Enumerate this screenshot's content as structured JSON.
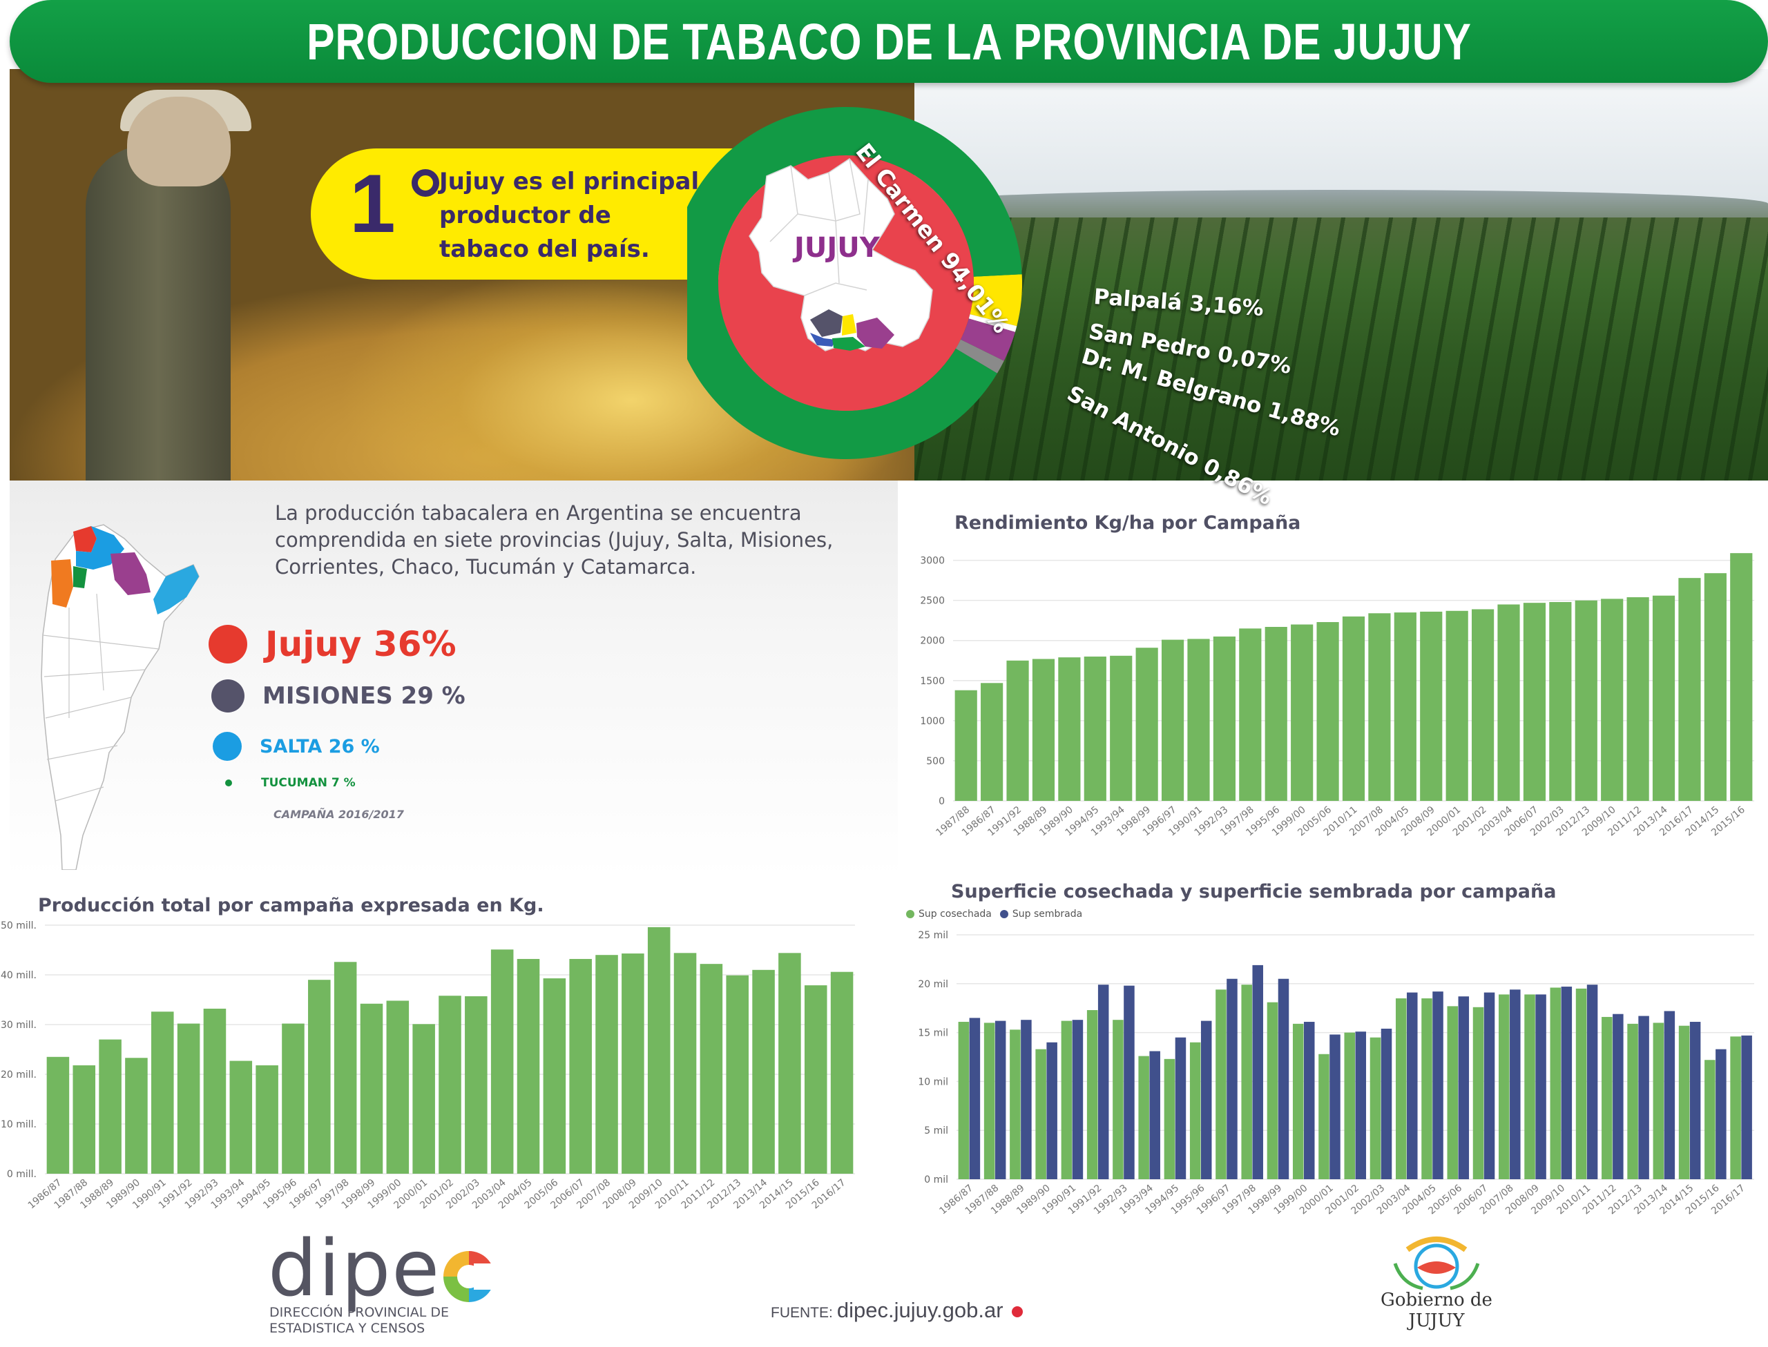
{
  "header": {
    "title": "PRODUCCION DE TABACO DE LA PROVINCIA DE JUJUY"
  },
  "hero": {
    "rank": "1",
    "callout_lines": [
      "Jujuy es el principal",
      "productor de",
      "tabaco del país."
    ],
    "map_label": "JUJUY",
    "donut": [
      {
        "name": "El Carmen",
        "label": "El Carmen 94,01%",
        "value": 94.01,
        "color": "#129a45"
      },
      {
        "name": "Palpalá",
        "label": "Palpalá 3,16%",
        "value": 3.16,
        "color": "#ffe600"
      },
      {
        "name": "San Pedro",
        "label": "San Pedro  0,07%",
        "value": 0.07,
        "color": "#ffffff"
      },
      {
        "name": "Dr. M. Belgrano",
        "label": "Dr. M. Belgrano 1,88%",
        "value": 1.88,
        "color": "#9a3f8e"
      },
      {
        "name": "San Antonio",
        "label": "San Antonio 0,86%",
        "value": 0.86,
        "color": "#8a8a8a"
      }
    ],
    "donut_inner_color": "#e9434d"
  },
  "intro": {
    "text": "La producción tabacalera en Argentina se encuentra comprendida en siete provincias (Jujuy, Salta, Misiones, Corrientes, Chaco, Tucumán y Catamarca."
  },
  "shares": [
    {
      "label": "Jujuy 36%",
      "value": 36,
      "color": "#e63a2e",
      "text_color": "#e63a2e"
    },
    {
      "label": "MISIONES 29 %",
      "value": 29,
      "color": "#55536a",
      "text_color": "#55536a"
    },
    {
      "label": "SALTA 26 %",
      "value": 26,
      "color": "#1b9de2",
      "text_color": "#1b9de2"
    },
    {
      "label": "TUCUMAN 7 %",
      "value": 7,
      "color": "#13923f",
      "text_color": "#13923f"
    }
  ],
  "campaign_note": "CAMPAÑA 2016/2017",
  "chart_data": [
    {
      "id": "rendimiento",
      "type": "bar",
      "title": "Rendimiento  Kg/ha por Campaña",
      "categories": [
        "1987/88",
        "1986/87",
        "1991/92",
        "1988/89",
        "1989/90",
        "1994/95",
        "1993/94",
        "1998/99",
        "1996/97",
        "1990/91",
        "1992/93",
        "1997/98",
        "1995/96",
        "1999/00",
        "2005/06",
        "2010/11",
        "2007/08",
        "2004/05",
        "2008/09",
        "2000/01",
        "2001/02",
        "2003/04",
        "2006/07",
        "2002/03",
        "2012/13",
        "2009/10",
        "2011/12",
        "2013/14",
        "2016/17",
        "2014/15",
        "2015/16"
      ],
      "values": [
        1380,
        1470,
        1750,
        1770,
        1790,
        1800,
        1810,
        1910,
        2010,
        2020,
        2050,
        2150,
        2170,
        2200,
        2230,
        2300,
        2340,
        2350,
        2360,
        2370,
        2390,
        2450,
        2470,
        2480,
        2500,
        2520,
        2540,
        2560,
        2780,
        2840,
        3090
      ],
      "yticks": [
        0,
        500,
        1000,
        1500,
        2000,
        2500,
        3000
      ],
      "ytick_labels": [
        "0",
        "500",
        "1000",
        "1500",
        "2000",
        "2500",
        "3000"
      ],
      "ylim": [
        0,
        3100
      ],
      "color": "#73b75f"
    },
    {
      "id": "produccion",
      "type": "bar",
      "title": "Producción total por campaña expresada en Kg.",
      "categories": [
        "1986/87",
        "1987/88",
        "1988/89",
        "1989/90",
        "1990/91",
        "1991/92",
        "1992/93",
        "1993/94",
        "1994/95",
        "1995/96",
        "1996/97",
        "1997/98",
        "1998/99",
        "1999/00",
        "2000/01",
        "2001/02",
        "2002/03",
        "2003/04",
        "2004/05",
        "2005/06",
        "2006/07",
        "2007/08",
        "2008/09",
        "2009/10",
        "2010/11",
        "2011/12",
        "2012/13",
        "2013/14",
        "2014/15",
        "2015/16",
        "2016/17"
      ],
      "values": [
        23.5,
        21.8,
        27,
        23.3,
        32.6,
        30.2,
        33.2,
        22.7,
        21.8,
        30.2,
        39,
        42.6,
        34.2,
        34.8,
        30.1,
        35.8,
        35.7,
        45.1,
        43.2,
        39.3,
        43.2,
        44,
        44.3,
        49.6,
        44.4,
        42.2,
        39.9,
        41,
        44.4,
        37.9,
        40.6
      ],
      "yticks": [
        0,
        10,
        20,
        30,
        40,
        50
      ],
      "ytick_labels": [
        "0 mill.",
        "10 mill.",
        "20 mill.",
        "30 mill.",
        "40 mill.",
        "50 mill."
      ],
      "ylim": [
        0,
        50
      ],
      "color": "#73b75f"
    },
    {
      "id": "superficie",
      "type": "bar",
      "title": "Superficie cosechada y superficie sembrada por campaña",
      "categories": [
        "1986/87",
        "1987/88",
        "1988/89",
        "1989/90",
        "1990/91",
        "1991/92",
        "1992/93",
        "1993/94",
        "1994/95",
        "1995/96",
        "1996/97",
        "1997/98",
        "1998/99",
        "1999/00",
        "2000/01",
        "2001/02",
        "2002/03",
        "2003/04",
        "2004/05",
        "2005/06",
        "2006/07",
        "2007/08",
        "2008/09",
        "2009/10",
        "2010/11",
        "2011/12",
        "2012/13",
        "2013/14",
        "2014/15",
        "2015/16",
        "2016/17"
      ],
      "series": [
        {
          "name": "Sup cosechada",
          "color": "#73b75f",
          "values": [
            16.1,
            16,
            15.3,
            13.3,
            16.2,
            17.3,
            16.3,
            12.6,
            12.3,
            14,
            19.4,
            19.9,
            18.1,
            15.9,
            12.8,
            15,
            14.5,
            18.5,
            18.5,
            17.7,
            17.6,
            18.9,
            18.9,
            19.6,
            19.5,
            16.6,
            15.9,
            16,
            15.7,
            12.2,
            14.6
          ]
        },
        {
          "name": "Sup sembrada",
          "color": "#40508c",
          "values": [
            16.5,
            16.2,
            16.3,
            14,
            16.3,
            19.9,
            19.8,
            13.1,
            14.5,
            16.2,
            20.5,
            21.9,
            20.5,
            16.1,
            14.8,
            15.1,
            15.4,
            19.1,
            19.2,
            18.7,
            19.1,
            19.4,
            18.9,
            19.7,
            19.9,
            16.9,
            16.7,
            17.2,
            16.1,
            13.3,
            14.7
          ]
        }
      ],
      "yticks": [
        0,
        5,
        10,
        15,
        20,
        25
      ],
      "ytick_labels": [
        "0 mil",
        "5 mil",
        "10 mil",
        "15 mil",
        "20 mil",
        "25 mil"
      ],
      "ylim": [
        0,
        25
      ]
    }
  ],
  "footer": {
    "logo_word": "dipe",
    "logo_sub": [
      "DIRECCIÓN PROVINCIAL DE",
      "ESTADISTICA Y CENSOS"
    ],
    "source_label": "FUENTE:",
    "source_value": "dipec.jujuy.gob.ar",
    "gov_label": "Gobierno de JUJUY"
  }
}
